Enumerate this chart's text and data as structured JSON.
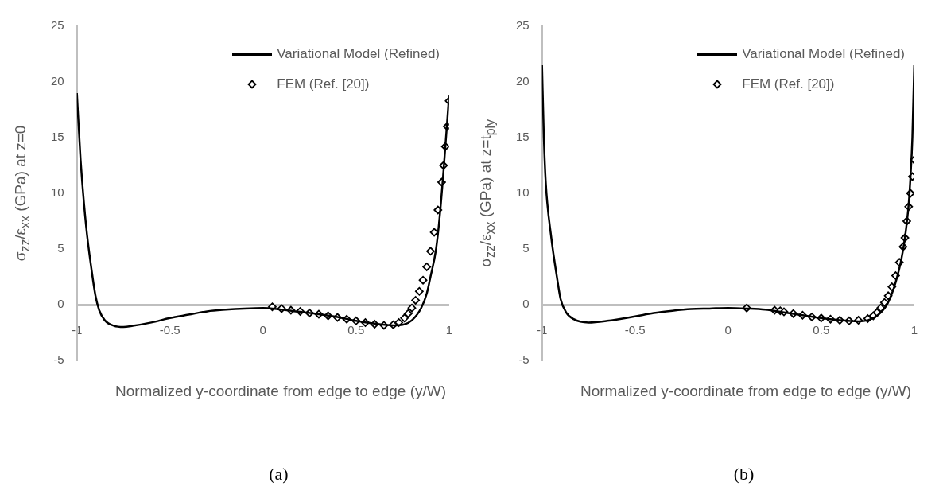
{
  "chart_data": [
    {
      "type": "line",
      "xlabel": "Normalized y-coordinate from edge to edge (y/W)",
      "ylabel": "σ$_{zz}$/ε$_{xx}$ (GPa) at z=0",
      "xlim": [
        -1,
        1
      ],
      "xticks": [
        -1,
        -0.5,
        0,
        0.5,
        1
      ],
      "ylim": [
        -5,
        25
      ],
      "yticks": [
        -5,
        0,
        5,
        10,
        15,
        20,
        25
      ],
      "grid": false,
      "legend": "top right",
      "annotations": [
        "(a)"
      ],
      "series": [
        {
          "name": "Variational Model (Refined)",
          "type": "line",
          "color": "#000000",
          "marker": "none",
          "x": [
            -1,
            -0.98,
            -0.95,
            -0.92,
            -0.9,
            -0.88,
            -0.85,
            -0.8,
            -0.75,
            -0.7,
            -0.6,
            -0.5,
            -0.4,
            -0.3,
            -0.2,
            -0.1,
            0,
            0.1,
            0.2,
            0.3,
            0.4,
            0.5,
            0.6,
            0.7,
            0.75,
            0.8,
            0.85,
            0.88,
            0.9,
            0.93,
            0.95,
            0.97,
            0.99,
            1
          ],
          "values": [
            19,
            13,
            7,
            3,
            0.8,
            -0.5,
            -1.4,
            -1.9,
            -2,
            -1.9,
            -1.6,
            -1.2,
            -0.9,
            -0.6,
            -0.45,
            -0.35,
            -0.3,
            -0.45,
            -0.65,
            -0.85,
            -1.1,
            -1.45,
            -1.7,
            -1.85,
            -1.8,
            -1.4,
            -0.3,
            1,
            2.5,
            5,
            8,
            12,
            16.5,
            18.8
          ]
        },
        {
          "name": "FEM (Ref. [20])",
          "type": "scatter",
          "color": "#000000",
          "marker": "diamond",
          "x": [
            0.05,
            0.1,
            0.15,
            0.2,
            0.25,
            0.3,
            0.35,
            0.4,
            0.45,
            0.5,
            0.55,
            0.6,
            0.65,
            0.7,
            0.73,
            0.76,
            0.78,
            0.8,
            0.82,
            0.84,
            0.86,
            0.88,
            0.9,
            0.92,
            0.94,
            0.96,
            0.97,
            0.98,
            0.99,
            1
          ],
          "values": [
            -0.2,
            -0.35,
            -0.5,
            -0.6,
            -0.75,
            -0.85,
            -1,
            -1.15,
            -1.3,
            -1.45,
            -1.6,
            -1.75,
            -1.85,
            -1.8,
            -1.6,
            -1.2,
            -0.8,
            -0.3,
            0.4,
            1.2,
            2.2,
            3.4,
            4.8,
            6.5,
            8.5,
            11,
            12.5,
            14.2,
            16,
            18.3
          ]
        }
      ]
    },
    {
      "type": "line",
      "xlabel": "Normalized y-coordinate from edge to edge (y/W)",
      "ylabel": "σ$_{zz}$/ε$_{xx}$ (GPa) at z=t$_{ply}$",
      "xlim": [
        -1,
        1
      ],
      "xticks": [
        -1,
        -0.5,
        0,
        0.5,
        1
      ],
      "ylim": [
        -5,
        25
      ],
      "yticks": [
        -5,
        0,
        5,
        10,
        15,
        20,
        25
      ],
      "grid": false,
      "legend": "top right",
      "annotations": [
        "(b)"
      ],
      "series": [
        {
          "name": "Variational Model (Refined)",
          "type": "line",
          "color": "#000000",
          "marker": "none",
          "x": [
            -1,
            -0.99,
            -0.98,
            -0.95,
            -0.92,
            -0.9,
            -0.87,
            -0.83,
            -0.75,
            -0.65,
            -0.5,
            -0.4,
            -0.3,
            -0.2,
            -0.1,
            0,
            0.1,
            0.2,
            0.3,
            0.4,
            0.5,
            0.6,
            0.7,
            0.75,
            0.8,
            0.85,
            0.88,
            0.9,
            0.93,
            0.95,
            0.97,
            0.98,
            0.99,
            1
          ],
          "values": [
            21.5,
            15,
            11,
            6,
            2.5,
            0.5,
            -0.7,
            -1.3,
            -1.6,
            -1.45,
            -1.05,
            -0.75,
            -0.55,
            -0.4,
            -0.35,
            -0.3,
            -0.35,
            -0.45,
            -0.7,
            -0.95,
            -1.2,
            -1.4,
            -1.5,
            -1.4,
            -1,
            -0.1,
            1,
            2,
            4,
            6,
            9,
            11.5,
            15,
            21.5
          ]
        },
        {
          "name": "FEM (Ref. [20])",
          "type": "scatter",
          "color": "#000000",
          "marker": "diamond",
          "x": [
            0.1,
            0.25,
            0.28,
            0.3,
            0.35,
            0.4,
            0.45,
            0.5,
            0.55,
            0.6,
            0.65,
            0.7,
            0.75,
            0.78,
            0.8,
            0.82,
            0.84,
            0.86,
            0.88,
            0.9,
            0.92,
            0.94,
            0.95,
            0.96,
            0.97,
            0.98,
            0.99,
            1
          ],
          "values": [
            -0.3,
            -0.5,
            -0.55,
            -0.65,
            -0.8,
            -0.95,
            -1.1,
            -1.2,
            -1.3,
            -1.4,
            -1.45,
            -1.4,
            -1.25,
            -1,
            -0.7,
            -0.3,
            0.2,
            0.8,
            1.6,
            2.6,
            3.8,
            5.2,
            6,
            7.5,
            8.8,
            10,
            11.5,
            13
          ]
        }
      ]
    }
  ]
}
